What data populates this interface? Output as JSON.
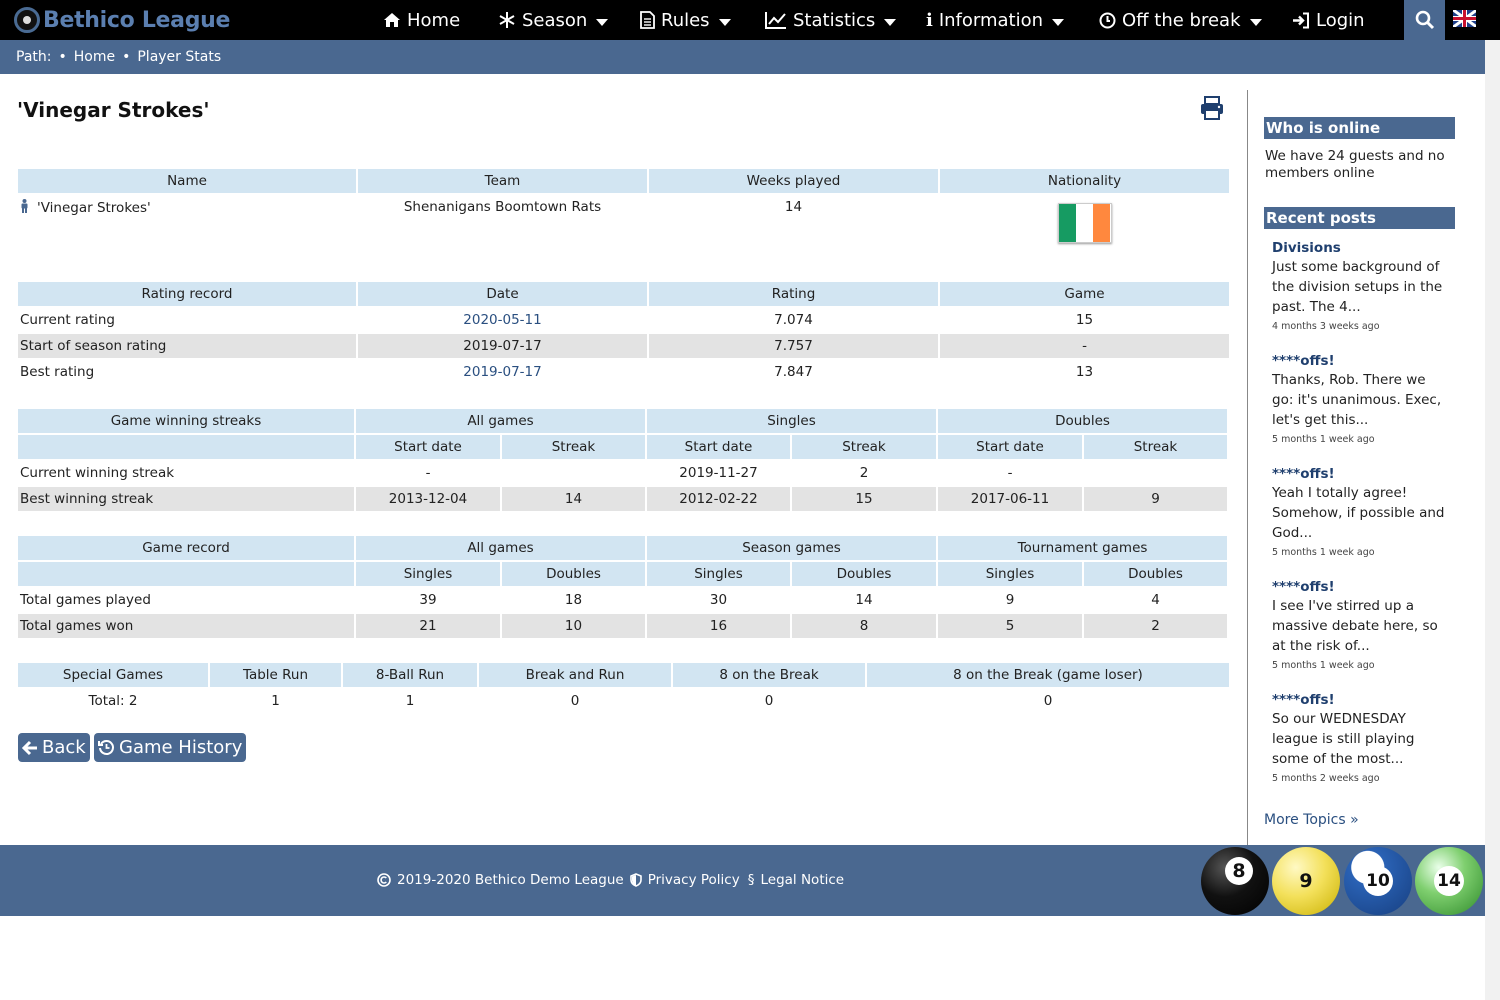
{
  "brand": {
    "name": "Bethico League"
  },
  "nav": {
    "home": "Home",
    "season": "Season",
    "rules": "Rules",
    "statistics": "Statistics",
    "information": "Information",
    "off_the_break": "Off the break",
    "login": "Login"
  },
  "path": {
    "label": "Path:",
    "items": [
      "Home",
      "Player Stats"
    ]
  },
  "player": {
    "title": "'Vinegar Strokes'",
    "headers": [
      "Name",
      "Team",
      "Weeks played",
      "Nationality"
    ],
    "name": "'Vinegar Strokes'",
    "team": "Shenanigans Boomtown Rats",
    "weeks_played": "14",
    "nationality_flag": "ireland-flag"
  },
  "rating": {
    "headers": [
      "Rating record",
      "Date",
      "Rating",
      "Game"
    ],
    "rows": [
      {
        "label": "Current rating",
        "date": "2020-05-11",
        "rating": "7.074",
        "game": "15"
      },
      {
        "label": "Start of season rating",
        "date": "2019-07-17",
        "rating": "7.757",
        "game": "-"
      },
      {
        "label": "Best rating",
        "date": "2019-07-17",
        "rating": "7.847",
        "game": "13"
      }
    ]
  },
  "streaks": {
    "headers": [
      "Game winning streaks",
      "All games",
      "Singles",
      "Doubles"
    ],
    "subheaders": [
      "Start date",
      "Streak"
    ],
    "rows": [
      {
        "label": "Current winning streak",
        "values": [
          "-",
          "",
          "2019-11-27",
          "2",
          "-",
          ""
        ]
      },
      {
        "label": "Best winning streak",
        "values": [
          "2013-12-04",
          "14",
          "2012-02-22",
          "15",
          "2017-06-11",
          "9"
        ]
      }
    ]
  },
  "games": {
    "headers": [
      "Game record",
      "All games",
      "Season games",
      "Tournament games"
    ],
    "subheaders": [
      "Singles",
      "Doubles"
    ],
    "rows": [
      {
        "label": "Total games played",
        "values": [
          "39",
          "18",
          "30",
          "14",
          "9",
          "4"
        ]
      },
      {
        "label": "Total games won",
        "values": [
          "21",
          "10",
          "16",
          "8",
          "5",
          "2"
        ]
      }
    ]
  },
  "special": {
    "headers": [
      "Special Games",
      "Table Run",
      "8-Ball Run",
      "Break and Run",
      "8 on the Break",
      "8 on the Break (game loser)"
    ],
    "values": [
      "Total: 2",
      "1",
      "1",
      "0",
      "0",
      "0"
    ]
  },
  "buttons": {
    "back": "Back",
    "history": "Game History"
  },
  "sidebar": {
    "online_title": "Who is online",
    "online_text": "We have 24 guests and no members online",
    "recent_title": "Recent posts",
    "posts": [
      {
        "title": "Divisions",
        "body": "Just some background of the division setups in the past. The 4...",
        "date": "4 months 3 weeks ago"
      },
      {
        "title": "****offs!",
        "body": "Thanks, Rob. There we go: it's unanimous. Exec, let's get this...",
        "date": "5 months 1 week ago"
      },
      {
        "title": "****offs!",
        "body": "Yeah I totally agree! Somehow, if possible and God...",
        "date": "5 months 1 week ago"
      },
      {
        "title": "****offs!",
        "body": "I see I've stirred up a massive debate here, so at the risk of...",
        "date": "5 months 1 week ago"
      },
      {
        "title": "****offs!",
        "body": "So our WEDNESDAY league is still playing some of the most...",
        "date": "5 months 2 weeks ago"
      }
    ],
    "more": "More Topics »"
  },
  "footer": {
    "copyright": "2019-2020  Bethico Demo League",
    "privacy": "Privacy Policy",
    "legal": "Legal Notice",
    "balls": [
      "8",
      "9",
      "10",
      "14"
    ]
  },
  "colors": {
    "nav_bg": "#000000",
    "accent": "#4a6890",
    "header_cell": "#d2e5f2",
    "zebra": "#e3e3e3"
  }
}
